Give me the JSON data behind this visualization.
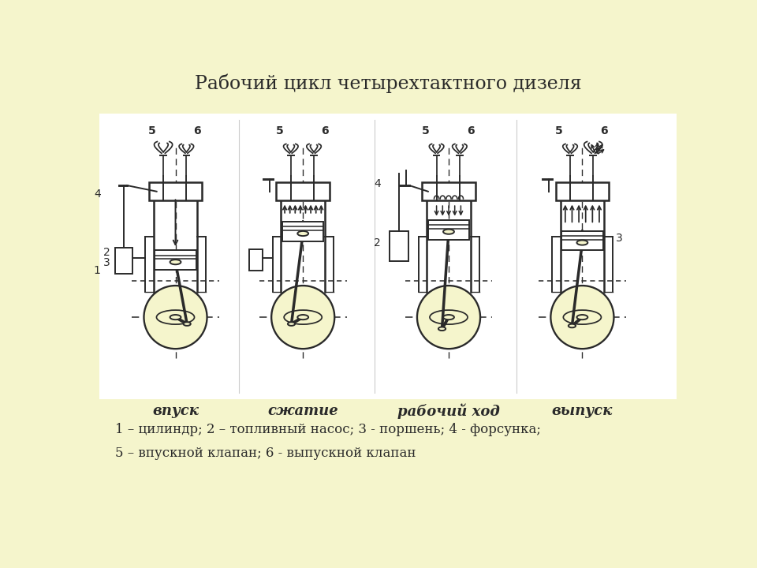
{
  "title": "Рабочий цикл четырехтактного дизеля",
  "title_fontsize": 17,
  "background_color": "#f5f5cc",
  "white_color": "#ffffff",
  "stages": [
    "впуск",
    "сжатие",
    "рабочий ход",
    "выпуск"
  ],
  "stage_fontsize": 13,
  "legend_text": "1 – цилиндр; 2 – топливный насос; 3 - поршень; 4 - форсунка;\n5 – впускной клапан; 6 - выпускной клапан",
  "legend_fontsize": 12,
  "line_color": "#2a2a2a",
  "line_width": 1.4
}
